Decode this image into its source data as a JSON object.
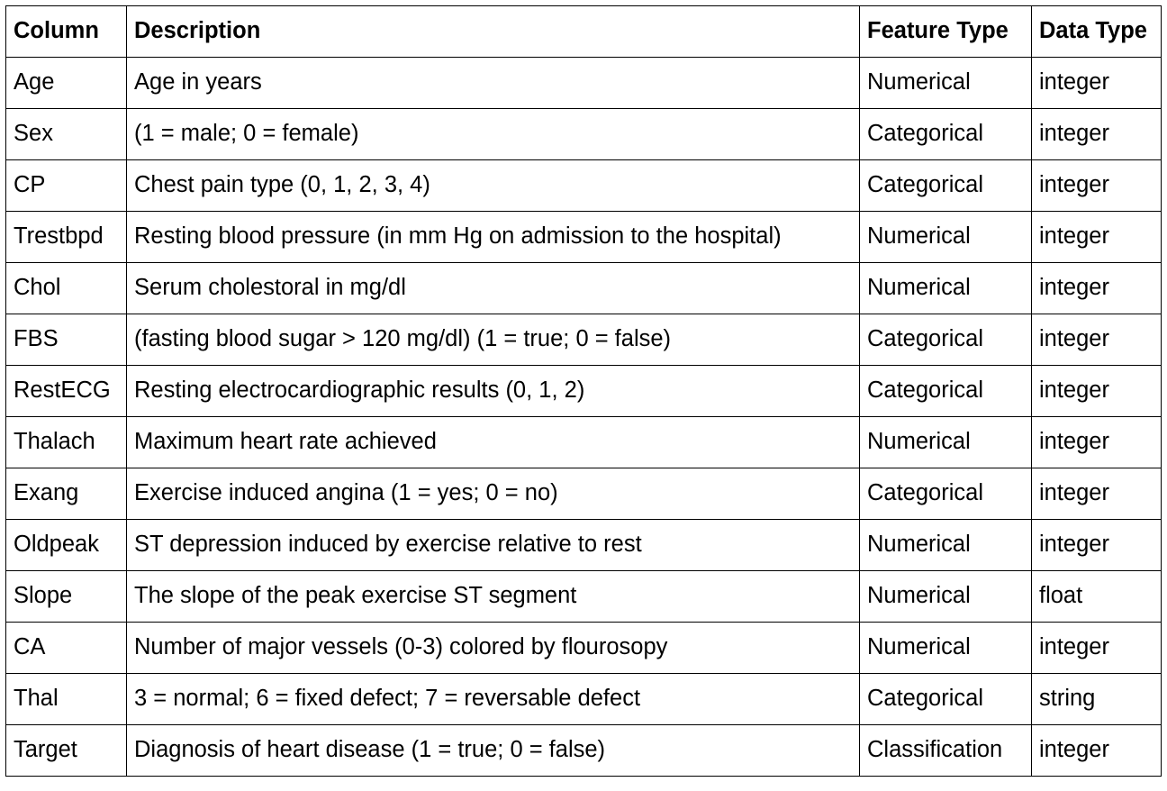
{
  "table": {
    "headers": [
      "Column",
      "Description",
      "Feature Type",
      "Data Type"
    ],
    "rows": [
      [
        "Age",
        "Age in years",
        "Numerical",
        "integer"
      ],
      [
        "Sex",
        "(1 = male; 0 = female)",
        "Categorical",
        "integer"
      ],
      [
        "CP",
        "Chest pain type (0, 1, 2, 3, 4)",
        "Categorical",
        "integer"
      ],
      [
        "Trestbpd",
        "Resting blood pressure (in mm Hg on admission to the hospital)",
        "Numerical",
        "integer"
      ],
      [
        "Chol",
        "Serum cholestoral in mg/dl",
        "Numerical",
        "integer"
      ],
      [
        "FBS",
        "(fasting blood sugar > 120 mg/dl) (1 = true; 0 = false)",
        "Categorical",
        "integer"
      ],
      [
        "RestECG",
        "Resting electrocardiographic results (0, 1, 2)",
        "Categorical",
        "integer"
      ],
      [
        "Thalach",
        "Maximum heart rate achieved",
        "Numerical",
        "integer"
      ],
      [
        "Exang",
        "Exercise induced angina (1 = yes; 0 = no)",
        "Categorical",
        "integer"
      ],
      [
        "Oldpeak",
        "ST depression induced by exercise relative to rest",
        "Numerical",
        "integer"
      ],
      [
        "Slope",
        "The slope of the peak exercise ST segment",
        "Numerical",
        "float"
      ],
      [
        "CA",
        "Number of major vessels (0-3) colored by flourosopy",
        "Numerical",
        "integer"
      ],
      [
        "Thal",
        "3 = normal; 6 = fixed defect; 7 = reversable defect",
        "Categorical",
        "string"
      ],
      [
        "Target",
        "Diagnosis of heart disease (1 = true; 0 = false)",
        "Classification",
        "integer"
      ]
    ]
  }
}
